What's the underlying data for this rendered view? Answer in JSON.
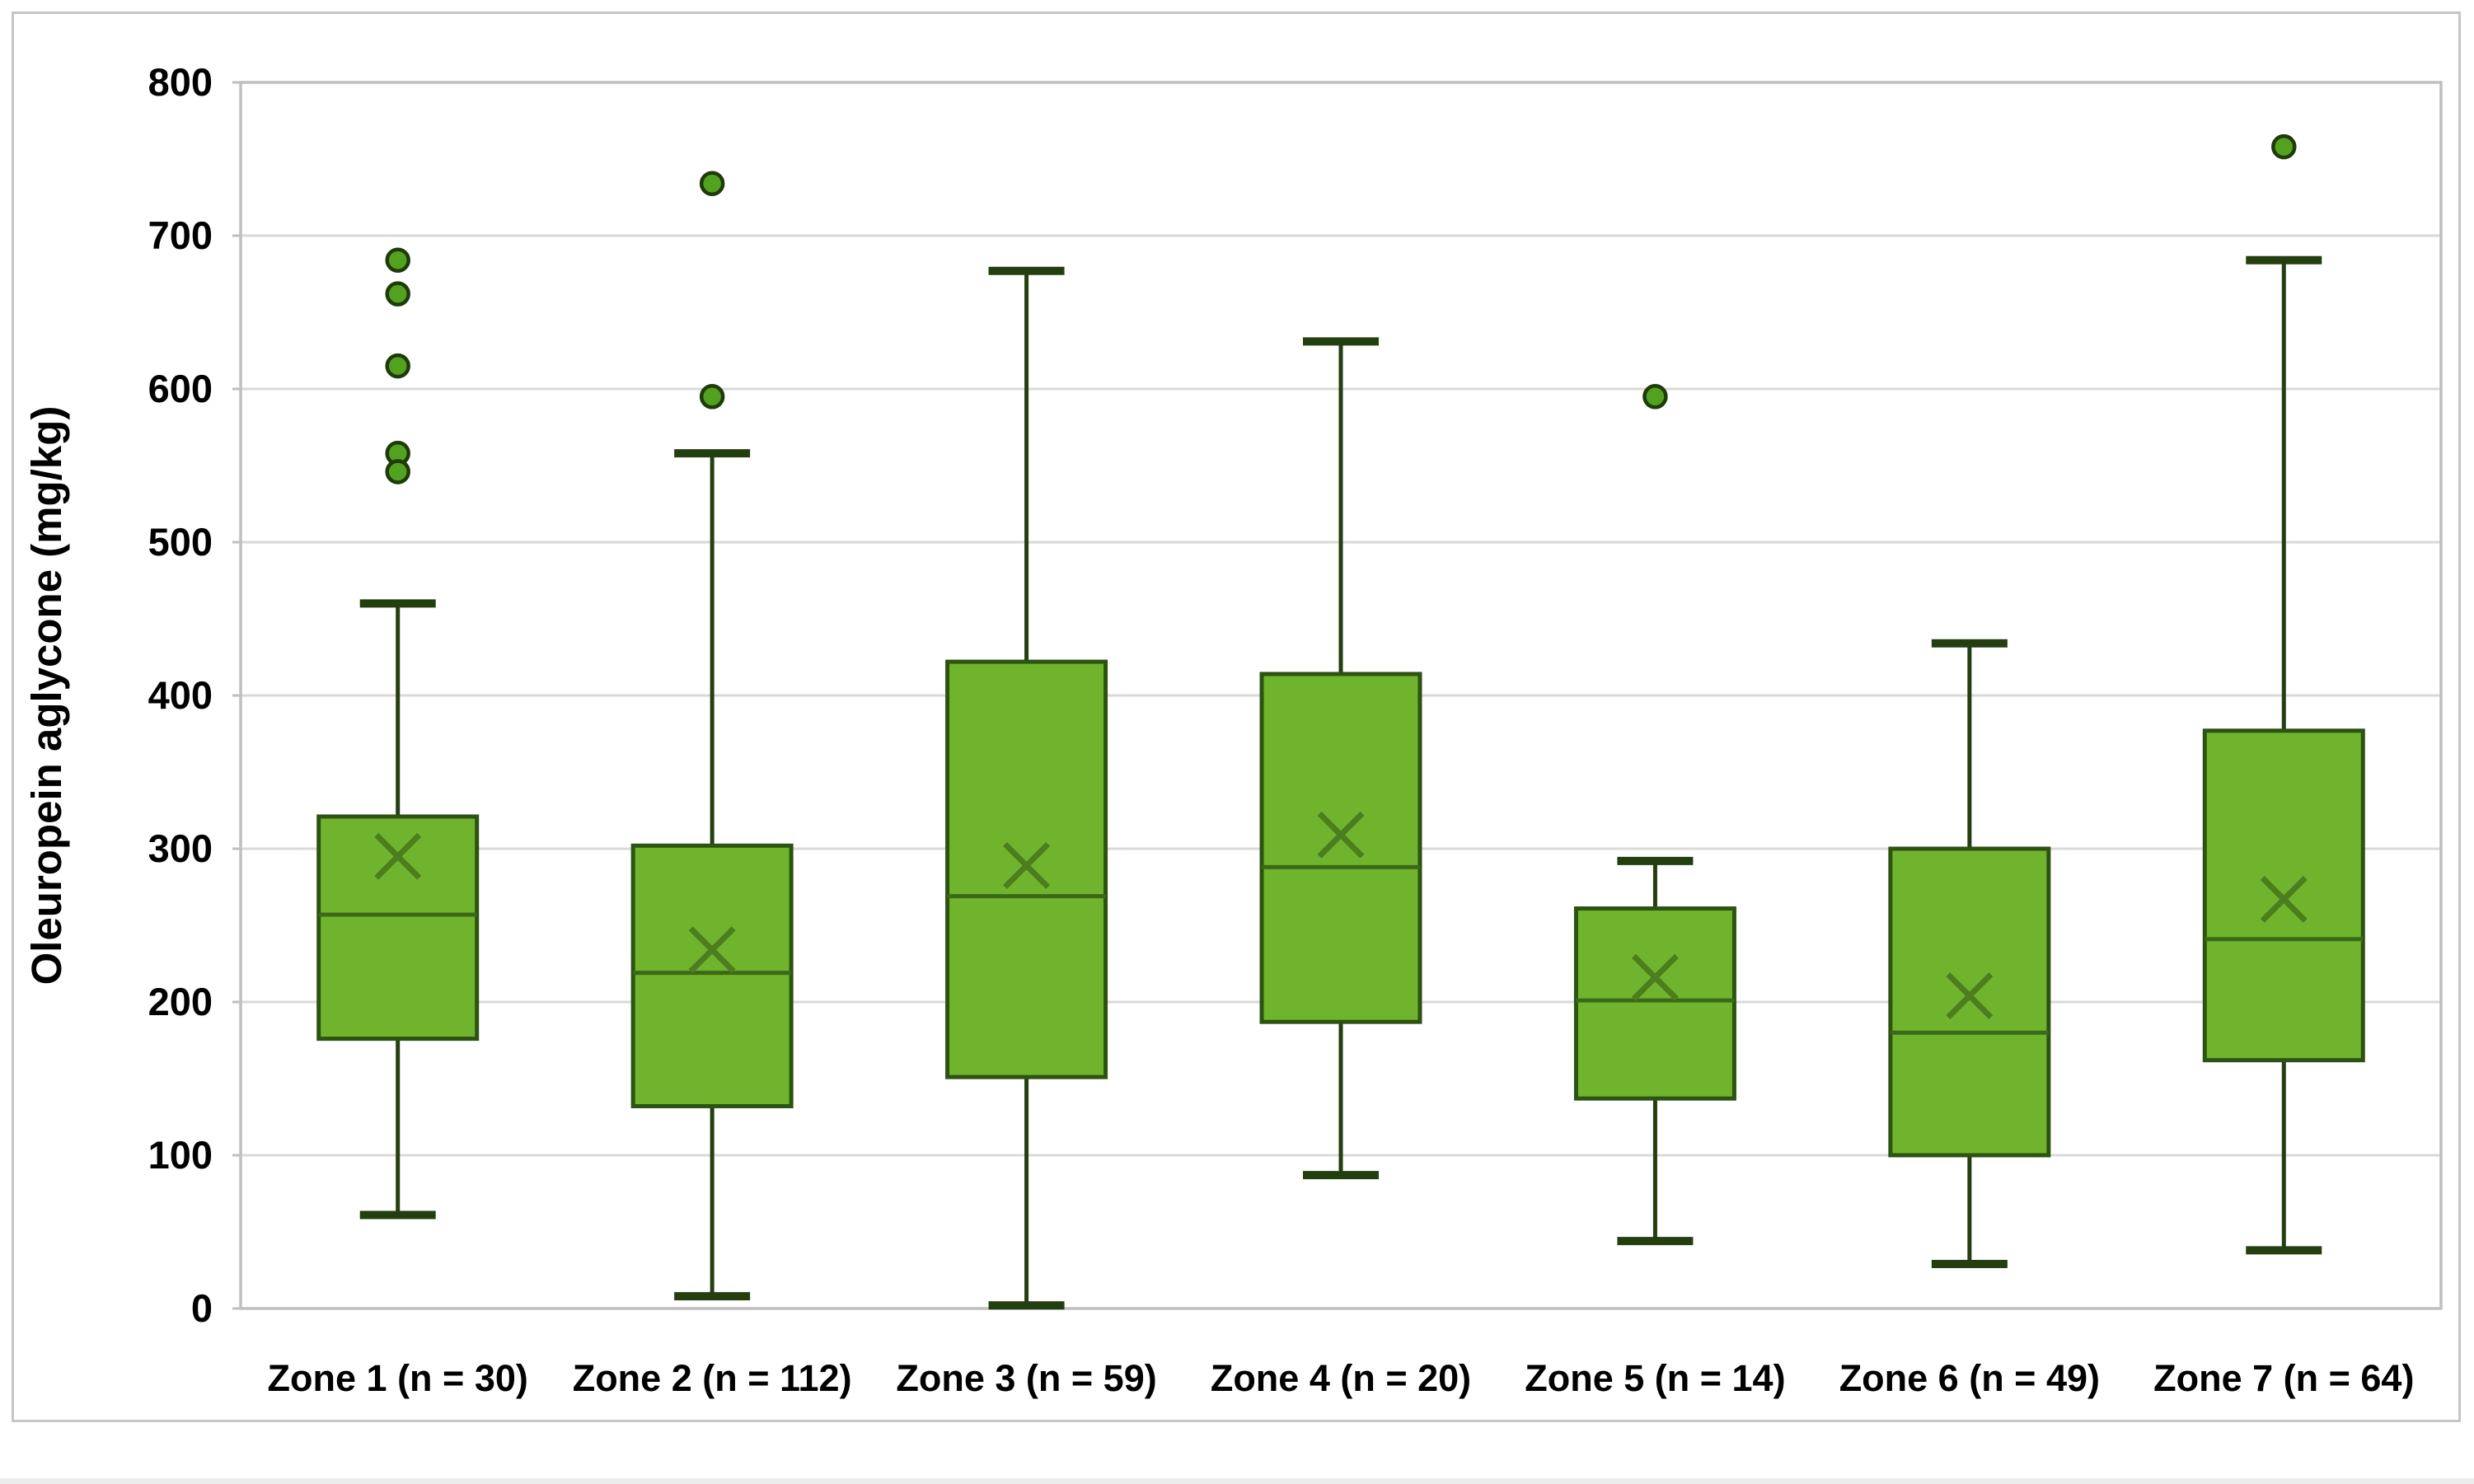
{
  "figure": {
    "background": "#ffffff",
    "frame_border_color": "#c6c6c6"
  },
  "chart_data": {
    "type": "boxplot",
    "title": "",
    "xlabel": "",
    "ylabel": "Oleuropein aglycone (mg/kg)",
    "ylim": [
      0,
      800
    ],
    "yticks": [
      0,
      100,
      200,
      300,
      400,
      500,
      600,
      700,
      800
    ],
    "grid": "horizontal",
    "legend": "none",
    "categories": [
      "Zone 1 (n = 30)",
      "Zone 2 (n = 112)",
      "Zone 3 (n = 59)",
      "Zone 4 (n = 20)",
      "Zone 5 (n = 14)",
      "Zone 6 (n = 49)",
      "Zone 7 (n = 64)"
    ],
    "series": [
      {
        "label": "Zone 1 (n = 30)",
        "whisker_low": 61,
        "q1": 176,
        "median": 257,
        "q3": 321,
        "whisker_high": 460,
        "mean": 295,
        "outliers": [
          684,
          662,
          615,
          558,
          546
        ]
      },
      {
        "label": "Zone 2 (n = 112)",
        "whisker_low": 8,
        "q1": 132,
        "median": 219,
        "q3": 302,
        "whisker_high": 558,
        "mean": 234,
        "outliers": [
          734,
          595
        ]
      },
      {
        "label": "Zone 3 (n = 59)",
        "whisker_low": 2,
        "q1": 151,
        "median": 269,
        "q3": 422,
        "whisker_high": 677,
        "mean": 289,
        "outliers": []
      },
      {
        "label": "Zone 4 (n = 20)",
        "whisker_low": 87,
        "q1": 187,
        "median": 288,
        "q3": 414,
        "whisker_high": 631,
        "mean": 309,
        "outliers": []
      },
      {
        "label": "Zone 5 (n = 14)",
        "whisker_low": 44,
        "q1": 137,
        "median": 201,
        "q3": 261,
        "whisker_high": 292,
        "mean": 216,
        "outliers": [
          595
        ]
      },
      {
        "label": "Zone 6 (n = 49)",
        "whisker_low": 29,
        "q1": 100,
        "median": 180,
        "q3": 300,
        "whisker_high": 434,
        "mean": 204,
        "outliers": []
      },
      {
        "label": "Zone 7 (n = 64)",
        "whisker_low": 38,
        "q1": 162,
        "median": 241,
        "q3": 377,
        "whisker_high": 684,
        "mean": 267,
        "outliers": [
          758
        ]
      }
    ],
    "colors": {
      "box_fill": "#70b42d",
      "box_border": "#2c5312",
      "median_line": "#3a6a19",
      "whisker": "#233f10",
      "mean_marker": "#4c7d1f",
      "outlier_fill": "#52a21f",
      "outlier_border": "#1f3a0b",
      "gridline": "#d9d9d9",
      "plot_border": "#bfbfbf",
      "text": "#000000"
    }
  }
}
